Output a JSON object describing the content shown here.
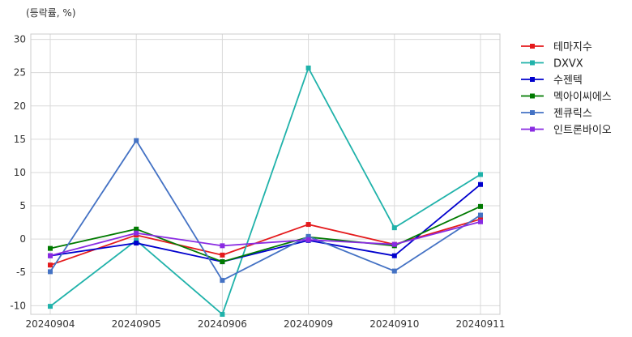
{
  "chart_data": {
    "type": "line",
    "unit_label": "(등락률, %)",
    "categories": [
      "20240904",
      "20240905",
      "20240906",
      "20240909",
      "20240910",
      "20240911"
    ],
    "ylim": [
      -11.3,
      30.8
    ],
    "yticks": [
      -10,
      -5,
      0,
      5,
      10,
      15,
      20,
      25,
      30
    ],
    "grid": true,
    "legend_position": "right",
    "series": [
      {
        "name": "테마지수",
        "color": "#e41a1c",
        "values": [
          -3.9,
          0.6,
          -2.4,
          2.2,
          -0.8,
          3.0
        ]
      },
      {
        "name": "DXVX",
        "color": "#20b2aa",
        "values": [
          -10.1,
          -0.2,
          -11.3,
          25.7,
          1.7,
          9.7
        ]
      },
      {
        "name": "수젠텍",
        "color": "#0000cd",
        "values": [
          -2.5,
          -0.6,
          -3.4,
          -0.2,
          -2.5,
          8.2
        ]
      },
      {
        "name": "멕아이씨에스",
        "color": "#007a00",
        "values": [
          -1.4,
          1.5,
          -3.4,
          0.3,
          -1.0,
          4.9
        ]
      },
      {
        "name": "젠큐릭스",
        "color": "#4472c4",
        "values": [
          -4.9,
          14.8,
          -6.2,
          0.4,
          -4.8,
          3.6
        ]
      },
      {
        "name": "인트론바이오",
        "color": "#8a2be2",
        "values": [
          -2.5,
          0.9,
          -1.0,
          -0.1,
          -0.8,
          2.6
        ]
      }
    ]
  }
}
